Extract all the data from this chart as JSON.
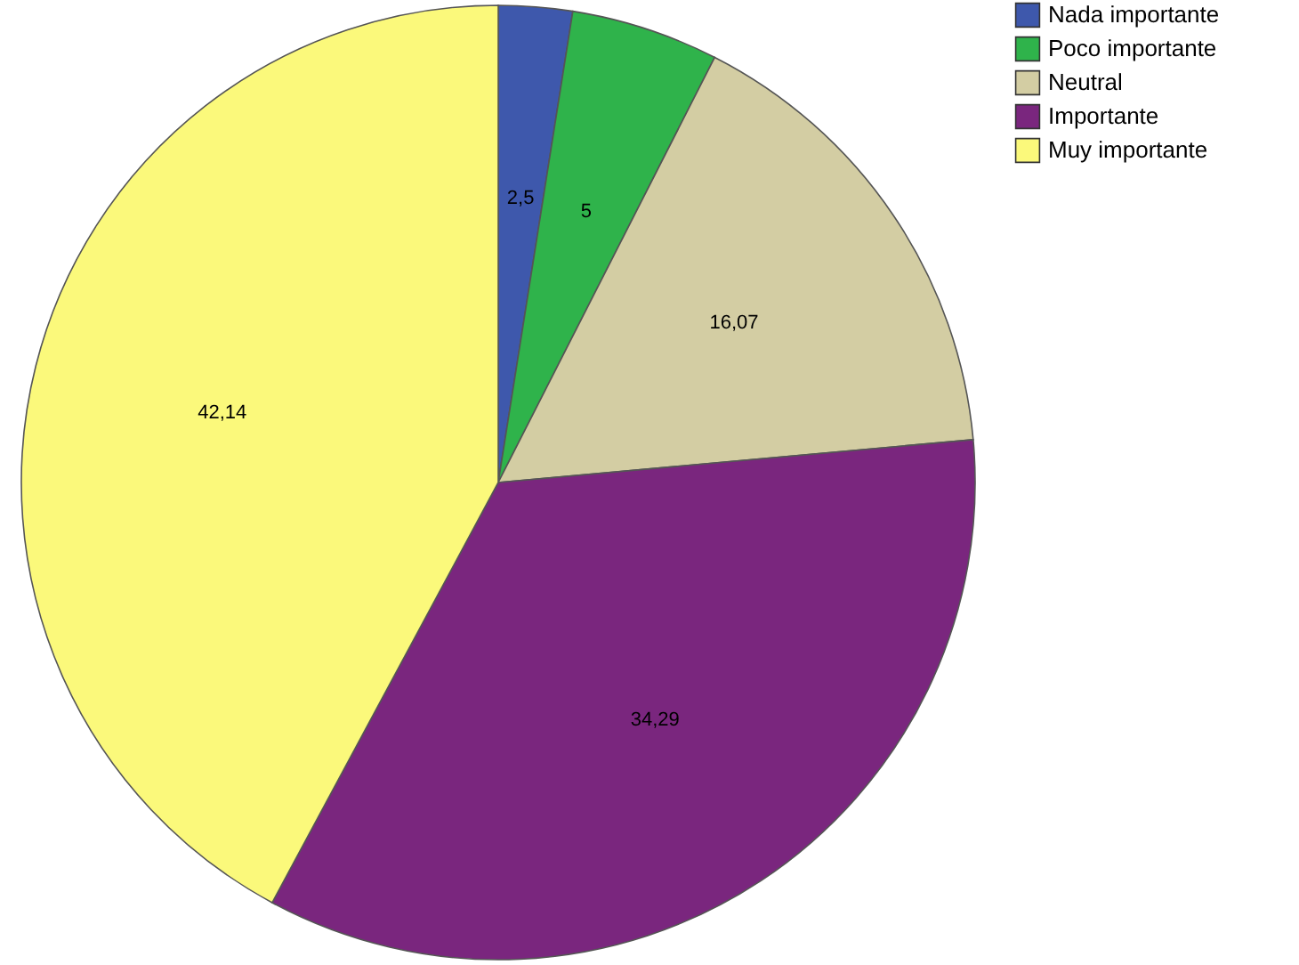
{
  "chart_data": {
    "type": "pie",
    "categories": [
      "Nada importante",
      "Poco importante",
      "Neutral",
      "Importante",
      "Muy importante"
    ],
    "values": [
      2.5,
      5,
      16.07,
      34.29,
      42.14
    ],
    "value_labels": [
      "2,5",
      "5",
      "16,07",
      "34,29",
      "42,14"
    ],
    "colors": [
      "#3e58ac",
      "#2fb34b",
      "#d3cda3",
      "#7a267e",
      "#fbf97b"
    ],
    "legend": "top right"
  }
}
